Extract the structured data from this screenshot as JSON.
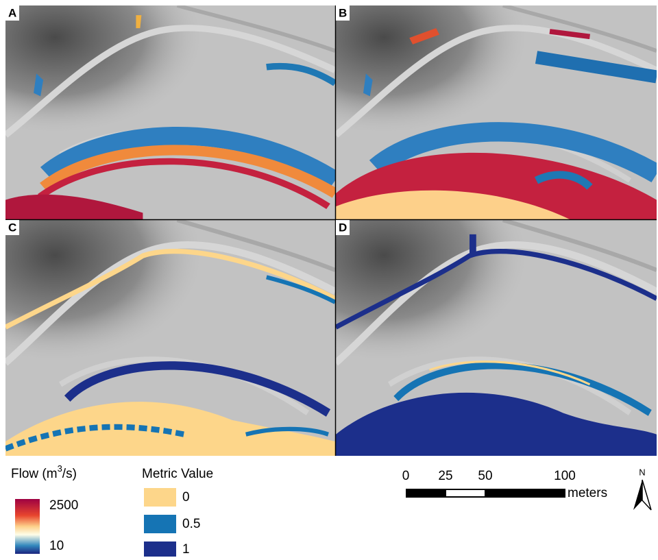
{
  "panels": [
    {
      "label": "A"
    },
    {
      "label": "B"
    },
    {
      "label": "C"
    },
    {
      "label": "D"
    }
  ],
  "flow_legend": {
    "title_prefix": "Flow (m",
    "title_sup": "3",
    "title_suffix": "/s)",
    "high": "2500",
    "low": "10"
  },
  "metric_legend": {
    "title": "Metric Value",
    "items": [
      "0",
      "0.5",
      "1"
    ]
  },
  "scale_bar": {
    "ticks": [
      "0",
      "25",
      "50",
      "100"
    ],
    "unit": "meters"
  },
  "north_arrow": "N"
}
